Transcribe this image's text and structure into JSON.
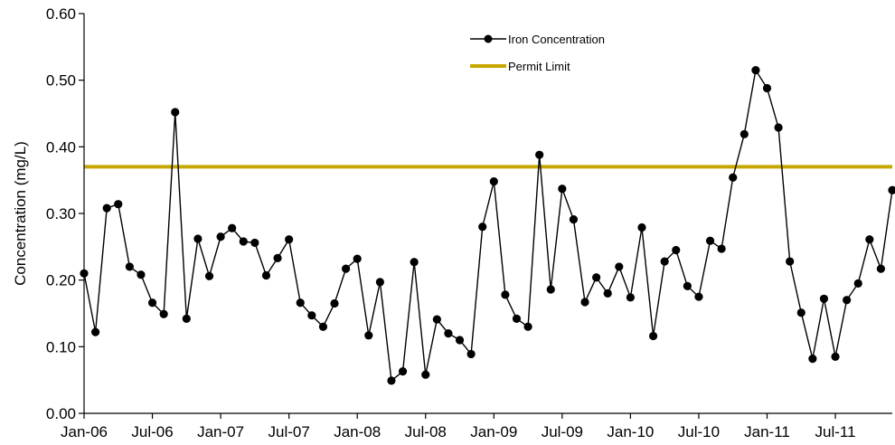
{
  "chart_data": {
    "type": "line",
    "title": "",
    "xlabel": "",
    "ylabel": "Concentration (mg/L)",
    "ylim": [
      0,
      0.6
    ],
    "y_ticks": [
      "0.00",
      "0.10",
      "0.20",
      "0.30",
      "0.40",
      "0.50",
      "0.60"
    ],
    "x_range": [
      "2006-01",
      "2011-12"
    ],
    "x_ticks": [
      "Jan-06",
      "Jul-06",
      "Jan-07",
      "Jul-07",
      "Jan-08",
      "Jul-08",
      "Jan-09",
      "Jul-09",
      "Jan-10",
      "Jul-10",
      "Jan-11",
      "Jul-11"
    ],
    "grid": false,
    "legend_position": "top-center",
    "series": [
      {
        "name": "Iron Concentration",
        "color": "#000000",
        "marker": "circle",
        "x": [
          "2006-01",
          "2006-02",
          "2006-03",
          "2006-04",
          "2006-05",
          "2006-06",
          "2006-07",
          "2006-08",
          "2006-09",
          "2006-10",
          "2006-11",
          "2006-12",
          "2007-01",
          "2007-02",
          "2007-03",
          "2007-04",
          "2007-05",
          "2007-06",
          "2007-07",
          "2007-08",
          "2007-09",
          "2007-10",
          "2007-11",
          "2007-12",
          "2008-01",
          "2008-02",
          "2008-03",
          "2008-04",
          "2008-05",
          "2008-06",
          "2008-07",
          "2008-08",
          "2008-09",
          "2008-10",
          "2008-11",
          "2008-12",
          "2009-01",
          "2009-02",
          "2009-03",
          "2009-04",
          "2009-05",
          "2009-06",
          "2009-07",
          "2009-08",
          "2009-09",
          "2009-10",
          "2009-11",
          "2009-12",
          "2010-01",
          "2010-02",
          "2010-03",
          "2010-04",
          "2010-05",
          "2010-06",
          "2010-07",
          "2010-08",
          "2010-09",
          "2010-10",
          "2010-11",
          "2010-12",
          "2011-01",
          "2011-02",
          "2011-03",
          "2011-04",
          "2011-05",
          "2011-06",
          "2011-07",
          "2011-08",
          "2011-09",
          "2011-10",
          "2011-11",
          "2011-12"
        ],
        "values": [
          0.21,
          0.122,
          0.308,
          0.314,
          0.22,
          0.208,
          0.166,
          0.149,
          0.452,
          0.142,
          0.262,
          0.206,
          0.265,
          0.278,
          0.258,
          0.256,
          0.207,
          0.233,
          0.261,
          0.166,
          0.147,
          0.13,
          0.165,
          0.217,
          0.232,
          0.117,
          0.197,
          0.049,
          0.063,
          0.227,
          0.058,
          0.141,
          0.12,
          0.11,
          0.089,
          0.28,
          0.348,
          0.178,
          0.142,
          0.13,
          0.388,
          0.186,
          0.337,
          0.291,
          0.167,
          0.204,
          0.18,
          0.22,
          0.174,
          0.279,
          0.116,
          0.228,
          0.245,
          0.191,
          0.175,
          0.259,
          0.247,
          0.354,
          0.419,
          0.515,
          0.488,
          0.429,
          0.228,
          0.151,
          0.082,
          0.172,
          0.085,
          0.17,
          0.195,
          0.261,
          0.217,
          0.335
        ]
      },
      {
        "name": "Permit Limit",
        "color": "#c8a800",
        "value": 0.37
      }
    ]
  }
}
